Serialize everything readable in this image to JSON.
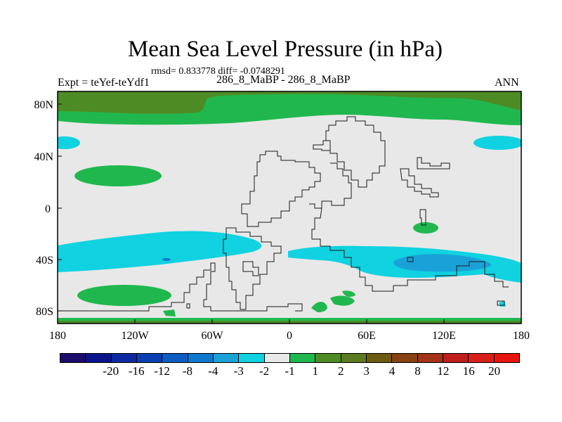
{
  "title": "Mean Sea Level Pressure (in hPa)",
  "stats": "rmsd= 0.833778 diff= -0.0748291",
  "expt_label": "Expt = teYef-teYdf1",
  "period_label": "286_8_MaBP - 286_8_MaBP",
  "season_label": "ANN",
  "x_ticks": [
    "180",
    "120W",
    "60W",
    "0",
    "60E",
    "120E",
    "180"
  ],
  "y_ticks": [
    "80N",
    "40N",
    "0",
    "40S",
    "80S"
  ],
  "colorbar": {
    "colors": [
      "#1c0c6c",
      "#0c1489",
      "#0d2aa0",
      "#0b3fb0",
      "#0d5dc0",
      "#1078cc",
      "#1aa2d8",
      "#10d2e0",
      "#e8e8e8",
      "#20b84e",
      "#4d8c25",
      "#5c7a20",
      "#6e5b12",
      "#864212",
      "#a2341a",
      "#c01e1c",
      "#d91f1a",
      "#e8140e"
    ],
    "labels": [
      "-20",
      "-16",
      "-12",
      "-8",
      "-4",
      "-3",
      "-2",
      "-1",
      "1",
      "2",
      "3",
      "4",
      "8",
      "12",
      "16",
      "20"
    ]
  },
  "fill_colors": {
    "neutral": "#e8e8e8",
    "pos_1_2": "#20b84e",
    "pos_3_4": "#4d8c25",
    "neg_1_2": "#10d2e0",
    "neg_2_3": "#1aa2d8",
    "neg_3_4": "#1078cc"
  }
}
